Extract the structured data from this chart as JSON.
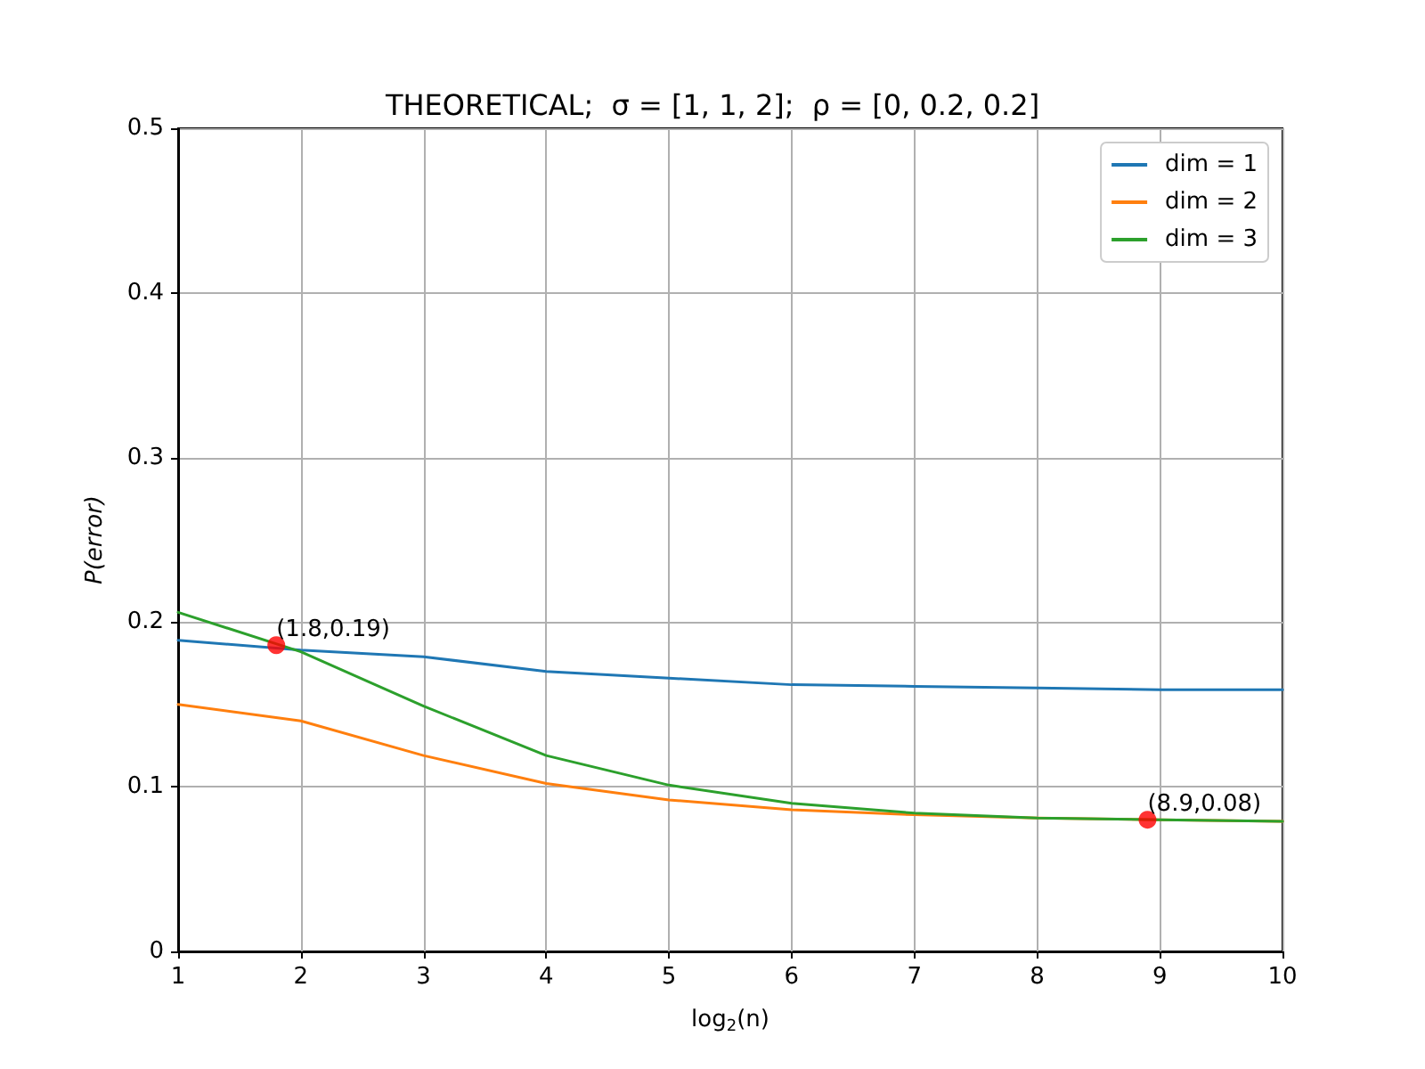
{
  "chart_data": {
    "type": "line",
    "title": "THEORETICAL;  σ = [1, 1, 2];  ρ = [0, 0.2, 0.2]",
    "xlabel": "log$_{2}$(n)",
    "ylabel": "P(error)",
    "x": [
      1,
      2,
      3,
      4,
      5,
      6,
      7,
      8,
      9,
      10
    ],
    "series": [
      {
        "name": "dim = 1",
        "color": "#1f77b4",
        "values": [
          0.189,
          0.183,
          0.179,
          0.17,
          0.166,
          0.162,
          0.161,
          0.16,
          0.159,
          0.159
        ]
      },
      {
        "name": "dim = 2",
        "color": "#ff7f0e",
        "values": [
          0.15,
          0.14,
          0.119,
          0.102,
          0.092,
          0.086,
          0.083,
          0.081,
          0.08,
          0.079
        ]
      },
      {
        "name": "dim = 3",
        "color": "#2ca02c",
        "values": [
          0.206,
          0.182,
          0.149,
          0.119,
          0.101,
          0.09,
          0.084,
          0.081,
          0.08,
          0.079
        ]
      },
      {
        "type": "scatter",
        "color": "#ff0000",
        "marker": "circle",
        "x": [
          1.8,
          8.9
        ],
        "values": [
          0.186,
          0.08
        ]
      }
    ],
    "annotations": [
      {
        "text": "(1.8,0.19)",
        "x": 1.8,
        "y": 0.186
      },
      {
        "text": "(8.9,0.08)",
        "x": 8.9,
        "y": 0.08
      }
    ],
    "xlim": [
      1,
      10
    ],
    "xticks": [
      1,
      2,
      3,
      4,
      5,
      6,
      7,
      8,
      9,
      10
    ],
    "ylim": [
      0,
      0.5
    ],
    "yticks": [
      0,
      0.1,
      0.2,
      0.3,
      0.4,
      0.5
    ],
    "grid": true,
    "legend": "top right",
    "marker": "none",
    "line_style": "solid"
  }
}
